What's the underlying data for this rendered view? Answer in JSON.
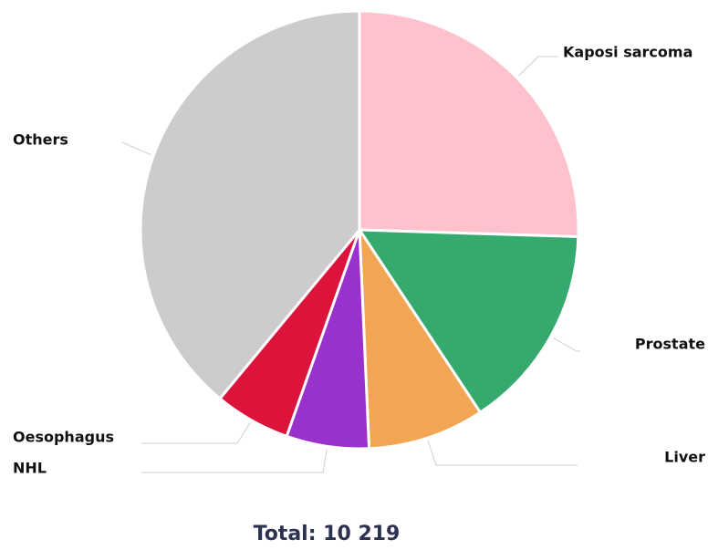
{
  "chart_data": {
    "type": "pie",
    "subtitle": "Total: 10 219",
    "categories": [
      "Kaposi sarcoma",
      "Prostate",
      "Liver",
      "NHL",
      "Oesophagus",
      "Others"
    ],
    "values": [
      25.5,
      15.2,
      8.6,
      6.1,
      5.6,
      39.0
    ],
    "colors": [
      "#ffc2cc",
      "#36a96f",
      "#f2a654",
      "#9932cc",
      "#dc143c",
      "#cccccc"
    ]
  }
}
